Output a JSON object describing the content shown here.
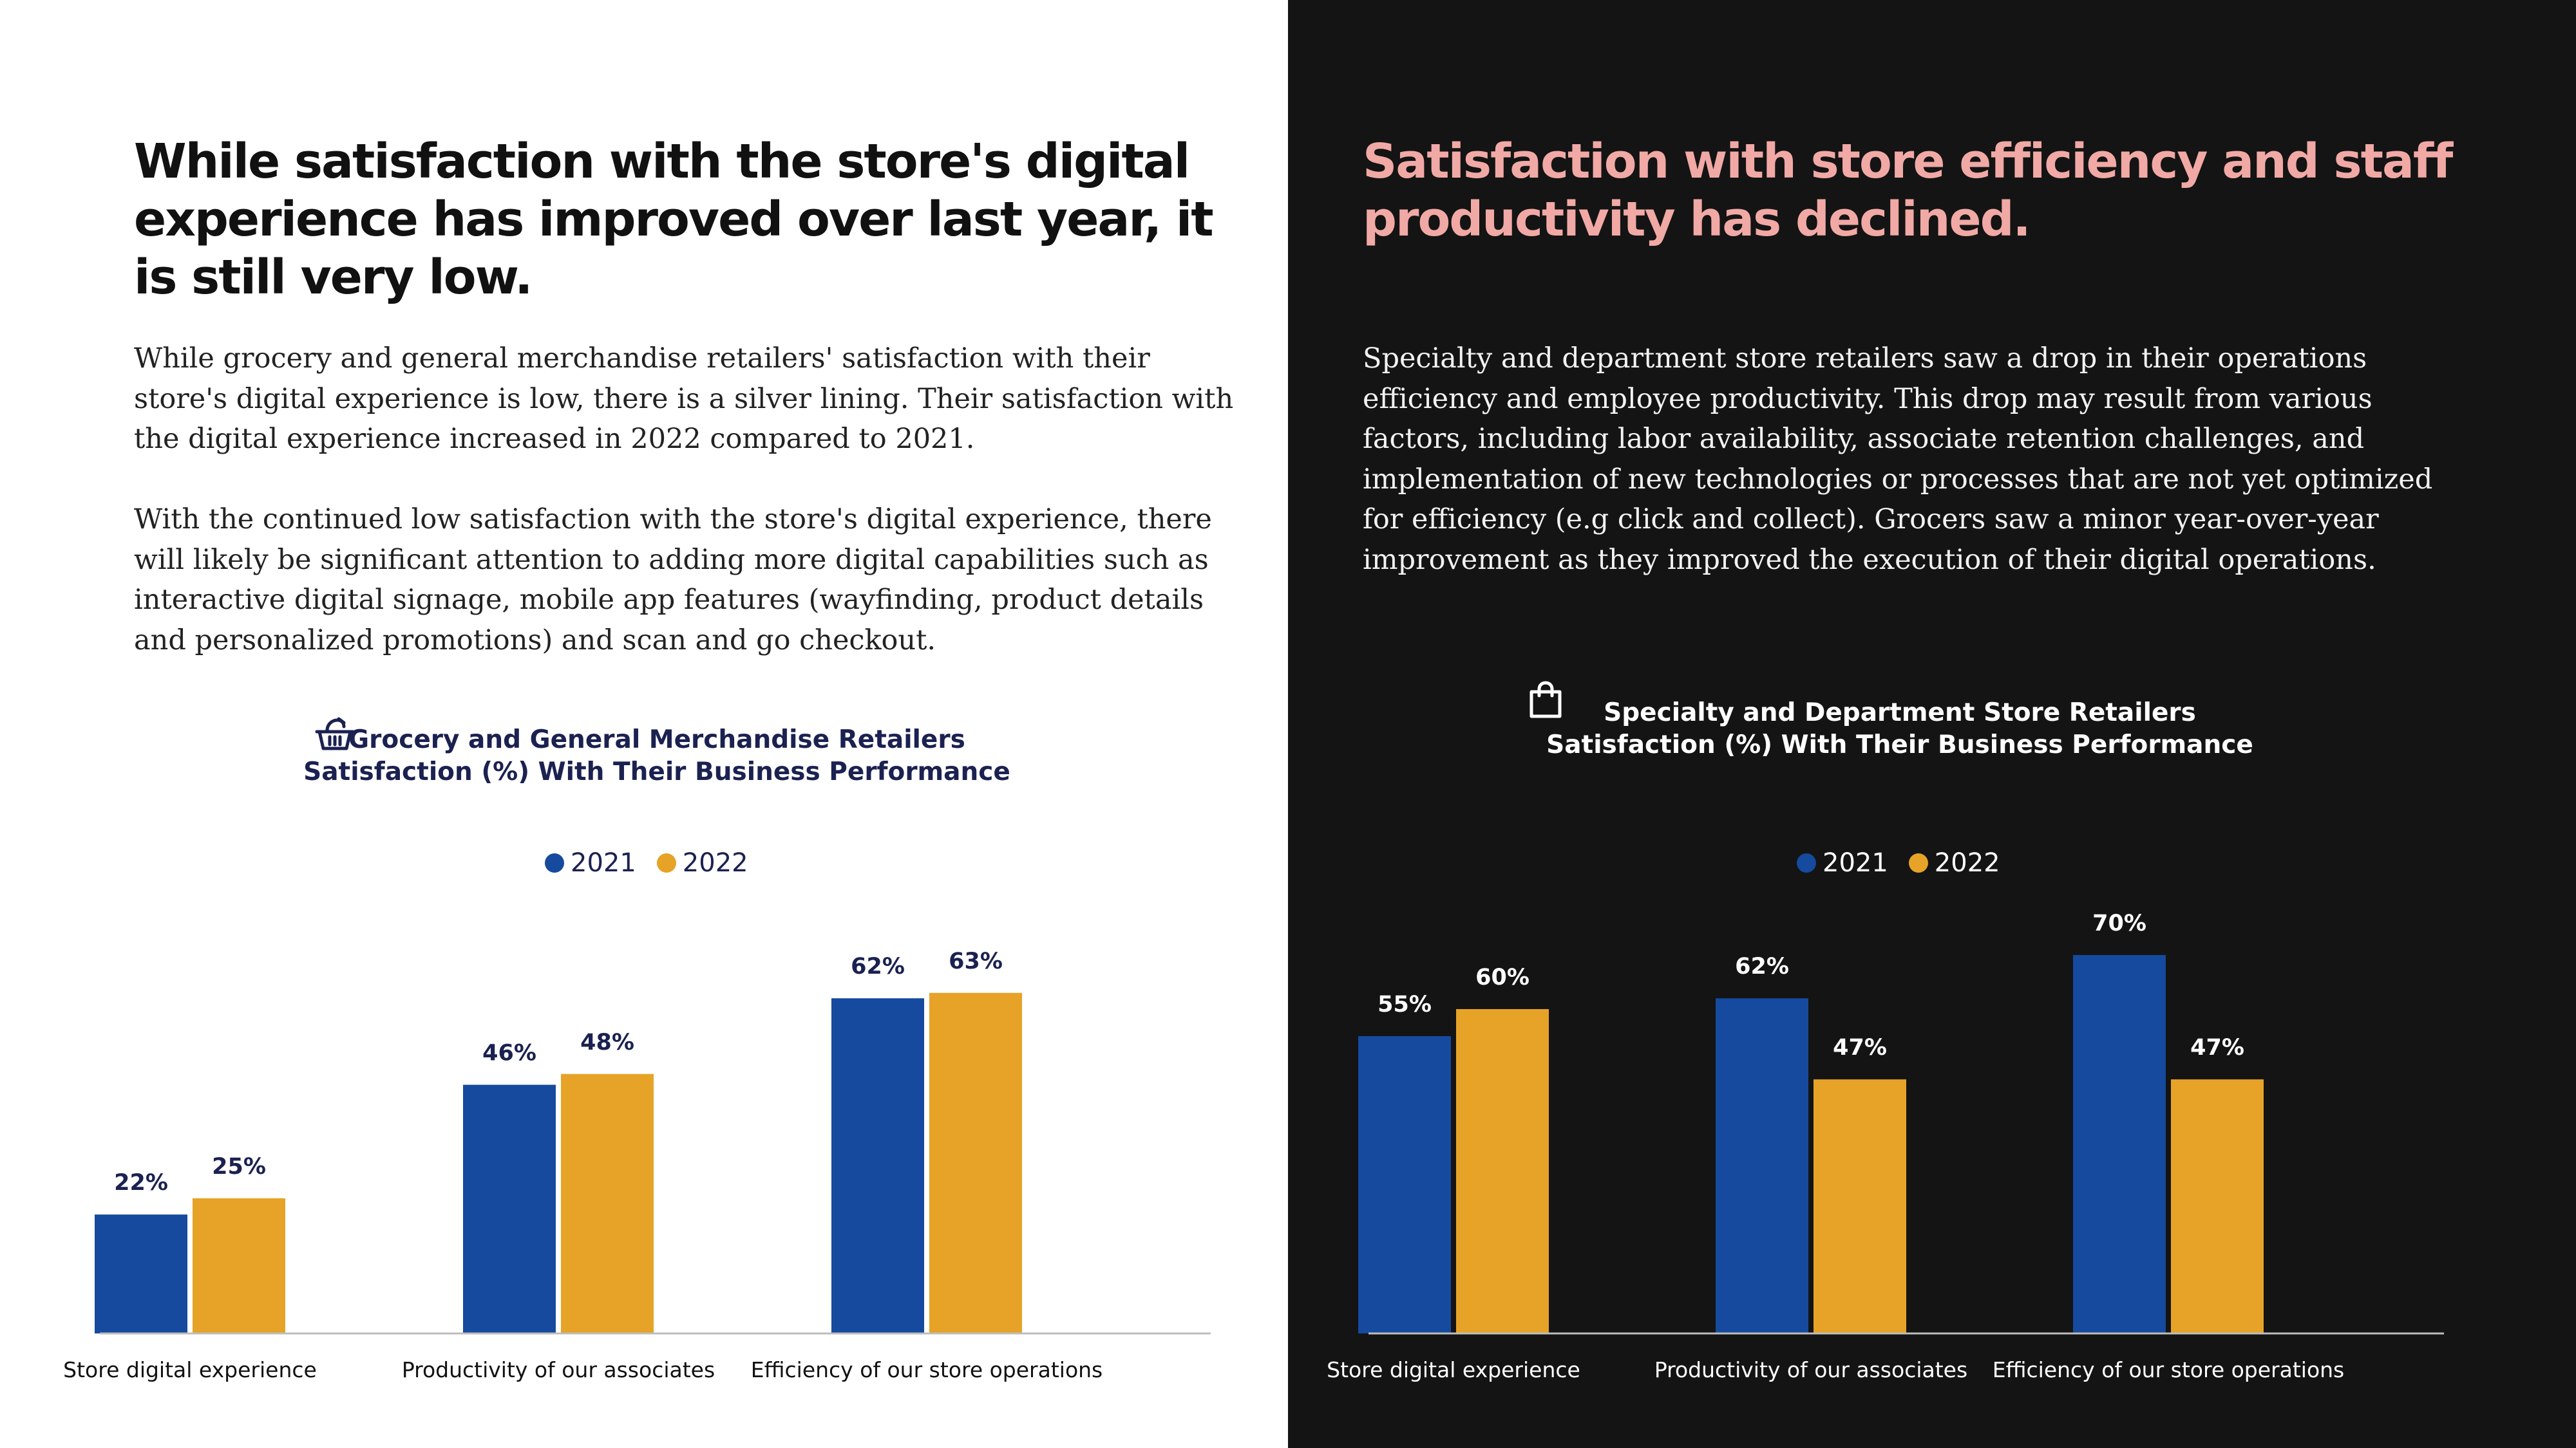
{
  "colors": {
    "series_2021": "#154a9e",
    "series_2022": "#e7a327",
    "left_bg": "#ffffff",
    "right_bg": "#141414",
    "right_heading": "#f1a9a6"
  },
  "left": {
    "heading": "While satisfaction with the store's digital experience has improved over last year, it is still very low.",
    "paragraph1": "While grocery and general merchandise retailers' satisfaction with their store's digital experience is low, there is a silver lining. Their satisfaction with the digital experience increased in 2022 compared to 2021.",
    "paragraph2": "With the continued low satisfaction with the store's digital experience, there will likely be significant attention to adding more digital capabilities such as interactive digital signage, mobile app features (wayfinding, product details and personalized promotions) and scan and go checkout.",
    "chart_icon": "grocery-basket-icon",
    "chart_title_line1": "Grocery and General Merchandise Retailers",
    "chart_title_line2": "Satisfaction (%) With Their Business Performance",
    "legend": [
      "2021",
      "2022"
    ]
  },
  "right": {
    "heading": "Satisfaction with store efficiency and staff productivity has declined.",
    "paragraph1": "Specialty and department store retailers saw a drop in their operations efficiency and employee productivity. This drop may result from various factors, including labor availability, associate retention challenges, and implementation of new technologies or processes that are not yet optimized for efficiency (e.g click and collect). Grocers saw a minor year-over-year improvement as they improved the execution of their digital operations.",
    "chart_icon": "shopping-bag-icon",
    "chart_title_line1": "Specialty and Department Store Retailers",
    "chart_title_line2": "Satisfaction (%) With Their Business Performance",
    "legend": [
      "2021",
      "2022"
    ]
  },
  "chart_data": [
    {
      "type": "bar",
      "title": "Grocery and General Merchandise Retailers Satisfaction (%) With Their Business Performance",
      "categories": [
        "Store digital experience",
        "Productivity of our associates",
        "Efficiency of our store operations"
      ],
      "series": [
        {
          "name": "2021",
          "values": [
            22,
            46,
            62
          ]
        },
        {
          "name": "2022",
          "values": [
            25,
            48,
            63
          ]
        }
      ],
      "value_suffix": "%",
      "ylim": [
        0,
        100
      ],
      "grid": false,
      "legend_position": "top-center"
    },
    {
      "type": "bar",
      "title": "Specialty and Department Store Retailers Satisfaction (%) With Their Business Performance",
      "categories": [
        "Store digital experience",
        "Productivity of our associates",
        "Efficiency of our store operations"
      ],
      "series": [
        {
          "name": "2021",
          "values": [
            55,
            62,
            70
          ]
        },
        {
          "name": "2022",
          "values": [
            60,
            47,
            47
          ]
        }
      ],
      "value_suffix": "%",
      "ylim": [
        0,
        100
      ],
      "grid": false,
      "legend_position": "top-center"
    }
  ]
}
